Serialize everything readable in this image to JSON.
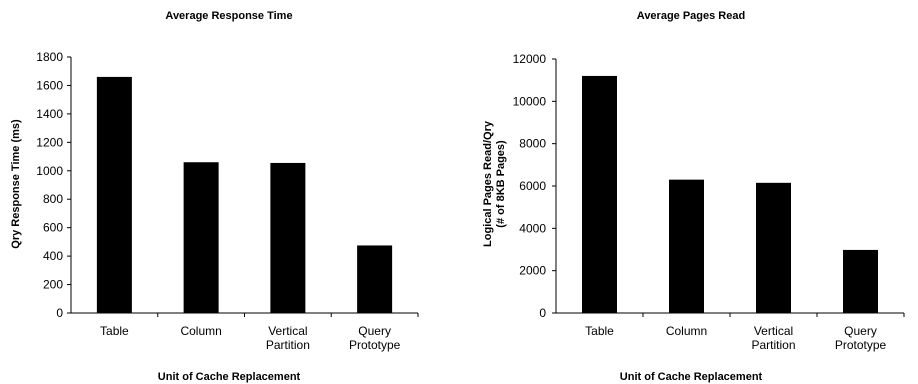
{
  "chart_data": [
    {
      "type": "bar",
      "title": "Average Response Time",
      "xlabel": "Unit of Cache Replacement",
      "ylabel": [
        "Qry Response Time (ms)"
      ],
      "categories": [
        [
          "Table"
        ],
        [
          "Column"
        ],
        [
          "Vertical",
          "Partition"
        ],
        [
          "Query",
          "Prototype"
        ]
      ],
      "values": [
        1660,
        1060,
        1055,
        475
      ],
      "ylim": [
        0,
        1800
      ],
      "yticks": [
        0,
        200,
        400,
        600,
        800,
        1000,
        1200,
        1400,
        1600,
        1800
      ],
      "bar_color": "#000000",
      "grid": false,
      "legend": "none"
    },
    {
      "type": "bar",
      "title": "Average Pages Read",
      "xlabel": "Unit of Cache Replacement",
      "ylabel": [
        "Logical Pages Read/Qry",
        "(# of 8KB Pages)"
      ],
      "categories": [
        [
          "Table"
        ],
        [
          "Column"
        ],
        [
          "Vertical",
          "Partition"
        ],
        [
          "Query",
          "Prototype"
        ]
      ],
      "values": [
        11200,
        6300,
        6150,
        2980
      ],
      "ylim": [
        0,
        12000
      ],
      "yticks": [
        0,
        2000,
        4000,
        6000,
        8000,
        10000,
        12000
      ],
      "bar_color": "#000000",
      "grid": false,
      "legend": "none"
    }
  ]
}
